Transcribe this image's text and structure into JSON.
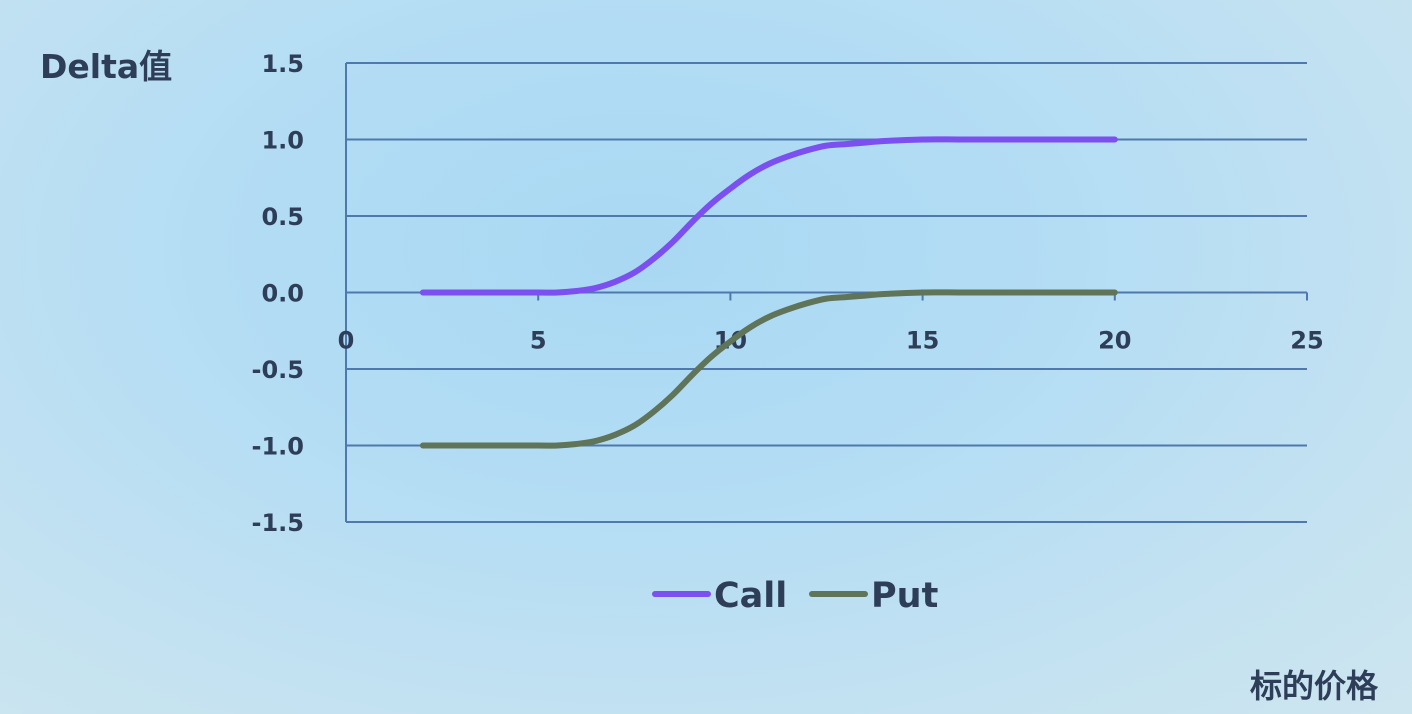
{
  "chart_data": {
    "type": "line",
    "ylabel": "Delta值",
    "xlabel": "标的价格",
    "xlim": [
      0,
      25
    ],
    "ylim": [
      -1.5,
      1.5
    ],
    "x_ticks": [
      "0",
      "5",
      "10",
      "15",
      "20",
      "25"
    ],
    "y_ticks": [
      "1.5",
      "1.0",
      "0.5",
      "0.0",
      "-0.5",
      "-1.0",
      "-1.5"
    ],
    "grid": true,
    "legend_position": "bottom",
    "series": [
      {
        "name": "Call",
        "color": "#7b4ff0",
        "x": [
          2,
          3,
          4,
          5,
          5.5,
          6,
          6.5,
          7,
          7.5,
          8,
          8.5,
          9,
          9.5,
          10,
          10.5,
          11,
          11.5,
          12,
          12.5,
          13,
          13.5,
          14,
          15,
          16,
          17,
          18,
          19,
          20
        ],
        "y": [
          0.0,
          0.0,
          0.0,
          0.0,
          0.0,
          0.01,
          0.03,
          0.07,
          0.13,
          0.22,
          0.33,
          0.46,
          0.58,
          0.68,
          0.77,
          0.84,
          0.89,
          0.93,
          0.96,
          0.97,
          0.98,
          0.99,
          1.0,
          1.0,
          1.0,
          1.0,
          1.0,
          1.0
        ]
      },
      {
        "name": "Put",
        "color": "#5f7458",
        "x": [
          2,
          3,
          4,
          5,
          5.5,
          6,
          6.5,
          7,
          7.5,
          8,
          8.5,
          9,
          9.5,
          10,
          10.5,
          11,
          11.5,
          12,
          12.5,
          13,
          13.5,
          14,
          15,
          16,
          17,
          18,
          19,
          20
        ],
        "y": [
          -1.0,
          -1.0,
          -1.0,
          -1.0,
          -1.0,
          -0.99,
          -0.97,
          -0.93,
          -0.87,
          -0.78,
          -0.67,
          -0.54,
          -0.42,
          -0.32,
          -0.23,
          -0.16,
          -0.11,
          -0.07,
          -0.04,
          -0.03,
          -0.02,
          -0.01,
          0.0,
          0.0,
          0.0,
          0.0,
          0.0,
          0.0
        ]
      }
    ]
  }
}
